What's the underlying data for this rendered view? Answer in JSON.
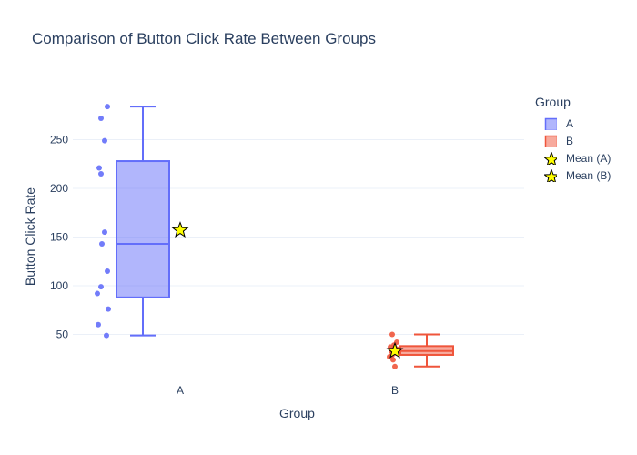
{
  "chart_data": {
    "type": "box",
    "title": "Comparison of Button Click Rate Between Groups",
    "xlabel": "Group",
    "ylabel": "Button Click Rate",
    "categories": [
      "A",
      "B"
    ],
    "y_ticks": [
      50,
      100,
      150,
      200,
      250
    ],
    "ylim": [
      2,
      295
    ],
    "grid": "horizontal",
    "legend_title": "Group",
    "legend_placement": "right",
    "series": [
      {
        "name": "A",
        "category": "A",
        "color": "#636efa",
        "box": {
          "min": 49,
          "q1": 88,
          "median": 143,
          "q3": 228,
          "max": 284
        },
        "points": [
          284,
          272,
          249,
          221,
          215,
          155,
          143,
          115,
          99,
          92,
          76,
          60,
          49
        ]
      },
      {
        "name": "B",
        "category": "B",
        "color": "#ef553b",
        "box": {
          "min": 17,
          "q1": 29,
          "median": 33,
          "q3": 38,
          "max": 50
        },
        "points": [
          50,
          42,
          39,
          37,
          35,
          33,
          31,
          29,
          27,
          24,
          17
        ]
      },
      {
        "name": "Mean (A)",
        "category": "A",
        "marker": "star",
        "color": "#ffff00",
        "value": 157
      },
      {
        "name": "Mean (B)",
        "category": "B",
        "marker": "star",
        "color": "#ffff00",
        "value": 33
      }
    ]
  }
}
